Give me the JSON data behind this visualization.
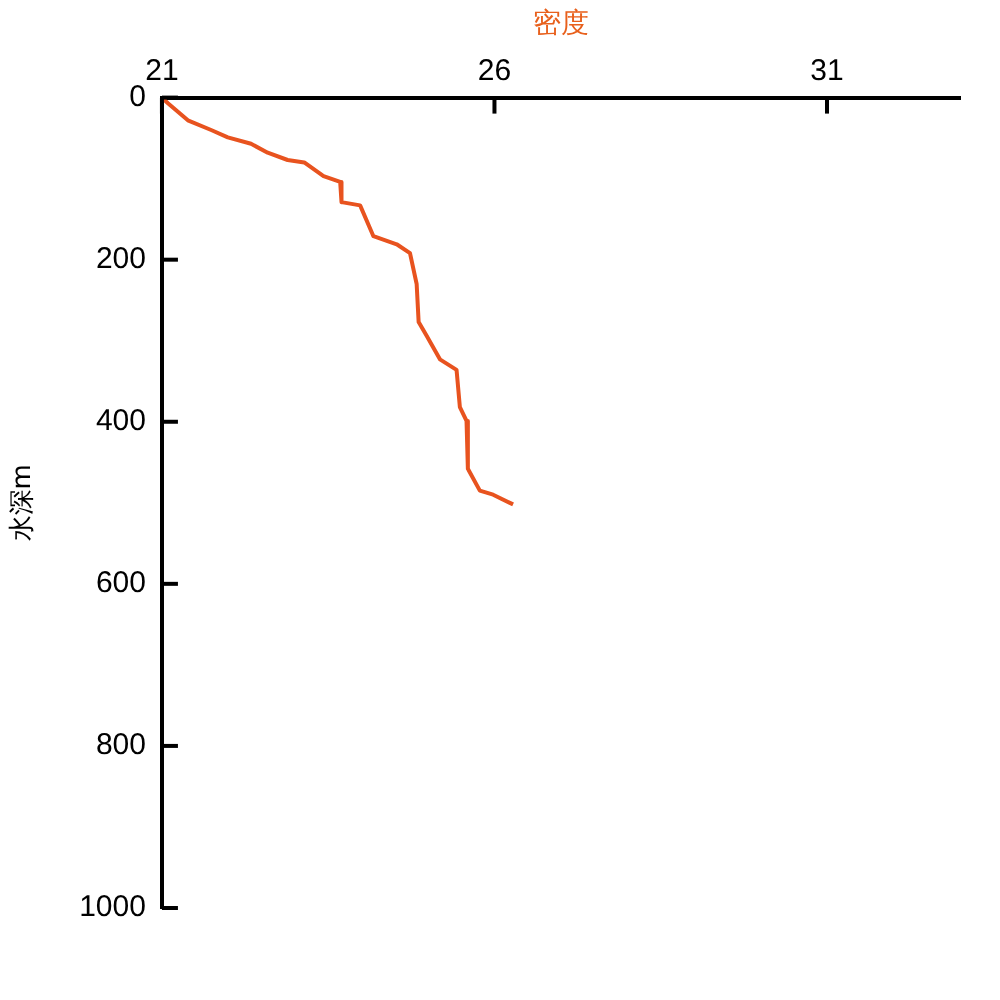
{
  "chart_data": {
    "type": "line",
    "xlabel": "密度",
    "ylabel": "水深m",
    "xlim": [
      21,
      33
    ],
    "xticks": [
      21,
      26,
      31
    ],
    "ylim": [
      1000,
      0
    ],
    "yticks": [
      0,
      200,
      400,
      600,
      800,
      1000
    ],
    "grid": false,
    "legend": false,
    "marker": "none",
    "series": [
      {
        "color": "#e8531f",
        "x": [
          21.0,
          21.09,
          21.39,
          21.74,
          21.99,
          22.34,
          22.59,
          22.89,
          23.14,
          23.43,
          23.68,
          23.7,
          23.98,
          24.18,
          24.53,
          24.73,
          24.83,
          24.86,
          24.98,
          25.18,
          25.43,
          25.48,
          25.58,
          25.6,
          25.78,
          25.98,
          26.28
        ],
        "values": [
          0,
          7,
          28,
          40,
          49,
          57,
          68,
          77,
          80,
          97,
          104,
          129,
          133,
          171,
          181,
          192,
          230,
          277,
          294,
          323,
          336,
          382,
          399,
          458,
          485,
          490,
          502
        ]
      }
    ]
  }
}
